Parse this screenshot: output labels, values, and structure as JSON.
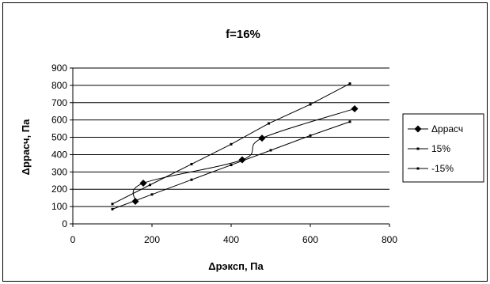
{
  "chart_data": {
    "type": "line",
    "title": "f=16%",
    "xlabel": "Δрэксп, Па",
    "ylabel": "Δррасч, Па",
    "xlim": [
      0,
      800
    ],
    "ylim": [
      0,
      900
    ],
    "xticks": [
      0,
      200,
      400,
      600,
      800
    ],
    "yticks": [
      0,
      100,
      200,
      300,
      400,
      500,
      600,
      700,
      800,
      900
    ],
    "xtick_labels": [
      "0",
      "200",
      "400",
      "600",
      "800"
    ],
    "ytick_labels": [
      "0",
      "100",
      "200",
      "300",
      "400",
      "500",
      "600",
      "700",
      "800",
      "900"
    ],
    "grid": "horizontal",
    "legend_position": "right",
    "series": [
      {
        "name": "Δррасч",
        "marker": "diamond",
        "smooth": true,
        "color": "#000000",
        "x": [
          158,
          178,
          428,
          478,
          712
        ],
        "y": [
          130,
          235,
          370,
          495,
          665
        ]
      },
      {
        "name": "15%",
        "marker": "dot",
        "smooth": false,
        "color": "#000000",
        "x": [
          100,
          195,
          300,
          400,
          495,
          600,
          700
        ],
        "y": [
          115,
          225,
          345,
          460,
          580,
          690,
          810
        ]
      },
      {
        "name": "-15%",
        "marker": "dot",
        "smooth": false,
        "color": "#000000",
        "x": [
          100,
          200,
          300,
          400,
          500,
          600,
          700
        ],
        "y": [
          85,
          170,
          255,
          340,
          425,
          510,
          590
        ]
      }
    ]
  }
}
